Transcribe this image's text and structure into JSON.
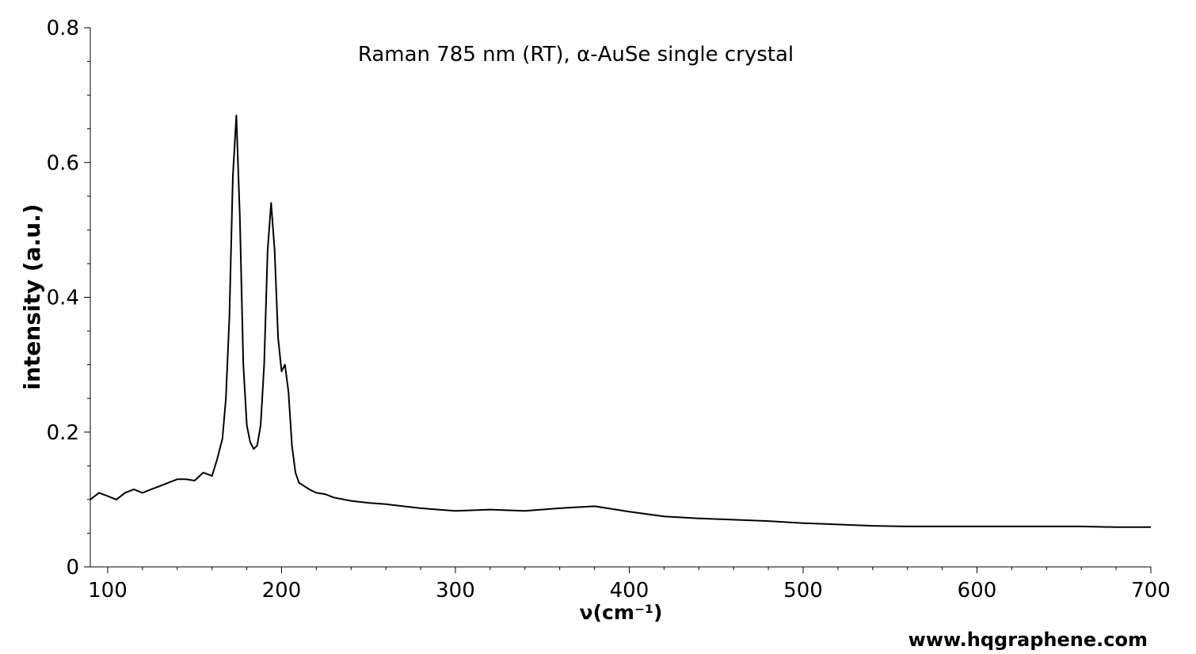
{
  "chart_data": {
    "type": "line",
    "title": "Raman 785 nm (RT), α-AuSe single crystal",
    "xlabel": "ν(cm⁻¹)",
    "ylabel": "intensity (a.u.)",
    "xlim": [
      90,
      700
    ],
    "ylim": [
      0,
      0.8
    ],
    "x_ticks": [
      100,
      200,
      300,
      400,
      500,
      600,
      700
    ],
    "x_tick_labels": [
      "100",
      "200",
      "300",
      "400",
      "500",
      "600",
      "700"
    ],
    "y_ticks": [
      0,
      0.2,
      0.4,
      0.6,
      0.8
    ],
    "y_tick_labels": [
      "0",
      "0.2",
      "0.4",
      "0.6",
      "0.8"
    ],
    "grid": false,
    "series": [
      {
        "color": "#000000",
        "x": [
          90,
          95,
          100,
          105,
          110,
          115,
          120,
          125,
          130,
          135,
          140,
          145,
          150,
          155,
          160,
          163,
          166,
          168,
          170,
          172,
          174,
          176,
          178,
          180,
          182,
          184,
          186,
          188,
          190,
          192,
          194,
          196,
          198,
          200,
          202,
          204,
          206,
          208,
          210,
          213,
          216,
          220,
          225,
          230,
          240,
          250,
          260,
          270,
          280,
          290,
          300,
          320,
          340,
          360,
          380,
          400,
          420,
          440,
          460,
          480,
          500,
          520,
          540,
          560,
          580,
          600,
          620,
          640,
          660,
          680,
          700
        ],
        "y": [
          0.1,
          0.11,
          0.105,
          0.1,
          0.11,
          0.115,
          0.11,
          0.115,
          0.12,
          0.125,
          0.13,
          0.13,
          0.128,
          0.14,
          0.135,
          0.16,
          0.19,
          0.25,
          0.37,
          0.58,
          0.67,
          0.52,
          0.3,
          0.21,
          0.185,
          0.175,
          0.18,
          0.21,
          0.3,
          0.47,
          0.54,
          0.47,
          0.34,
          0.29,
          0.3,
          0.26,
          0.18,
          0.14,
          0.125,
          0.12,
          0.115,
          0.11,
          0.108,
          0.103,
          0.098,
          0.095,
          0.093,
          0.09,
          0.087,
          0.085,
          0.083,
          0.085,
          0.083,
          0.087,
          0.09,
          0.082,
          0.075,
          0.072,
          0.07,
          0.068,
          0.065,
          0.063,
          0.061,
          0.06,
          0.06,
          0.06,
          0.06,
          0.06,
          0.06,
          0.059,
          0.059
        ]
      }
    ]
  },
  "watermark": "www.hqgraphene.com"
}
